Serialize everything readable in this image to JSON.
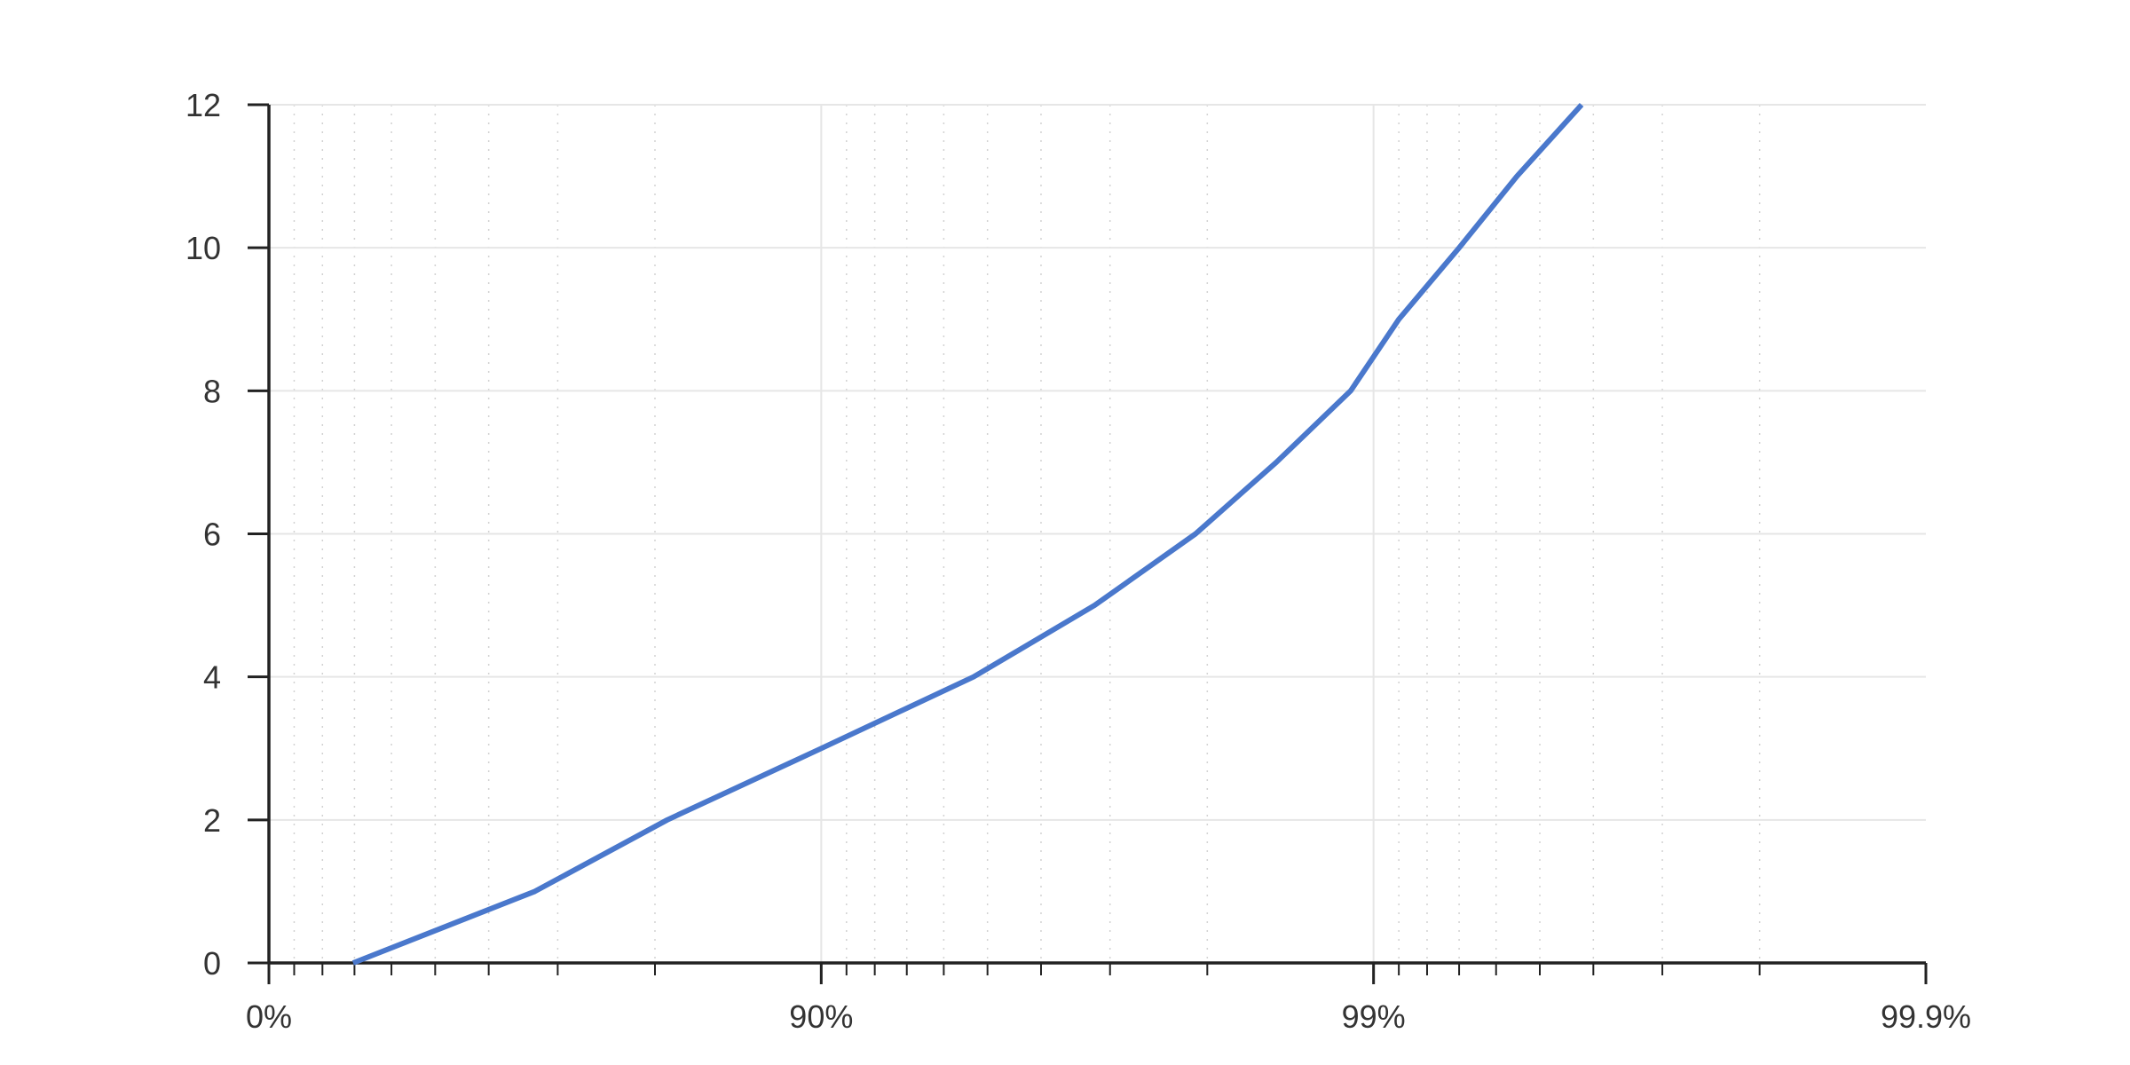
{
  "chart_data": {
    "type": "line",
    "title": "",
    "xlabel": "",
    "ylabel": "",
    "x_scale": "log-complement",
    "x_ticks": [
      0,
      90,
      99,
      99.9
    ],
    "x_tick_labels": [
      "0%",
      "90%",
      "99%",
      "99.9%"
    ],
    "y_ticks": [
      0,
      2,
      4,
      6,
      8,
      10,
      12
    ],
    "y_tick_labels": [
      "0",
      "2",
      "4",
      "6",
      "8",
      "10",
      "12"
    ],
    "ylim": [
      0,
      12
    ],
    "xlim": [
      0,
      99.9
    ],
    "grid": true,
    "colors": {
      "line": "#4a78cc",
      "axis": "#222222",
      "grid": "#e6e6e6",
      "minor_grid": "#d2d2d2"
    },
    "series": [
      {
        "x": [
          29.6,
          67,
          81,
          90,
          94.7,
          96.8,
          97.9,
          98.5,
          98.9,
          99.1,
          99.3,
          99.45,
          99.58
        ],
        "y": [
          0,
          1,
          2,
          3,
          4,
          5,
          6,
          7,
          8,
          9,
          10,
          11,
          12
        ]
      }
    ]
  }
}
